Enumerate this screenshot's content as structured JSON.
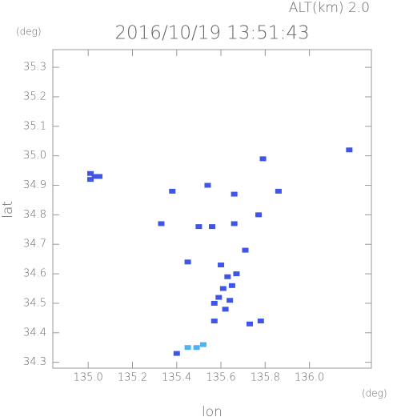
{
  "alt_label": "ALT(km) 2.0",
  "chart_data": {
    "type": "scatter",
    "title": "2016/10/19 13:51:43",
    "y_unit": "(deg)",
    "x_unit": "(deg)",
    "xlabel": "lon",
    "ylabel": "lat",
    "xlim": [
      134.84,
      136.28
    ],
    "ylim": [
      34.28,
      35.36
    ],
    "xticks": [
      {
        "value": 135,
        "label": "135.0"
      },
      135.2,
      135.4,
      135.6,
      135.8,
      {
        "value": 136,
        "label": "136.0"
      }
    ],
    "yticks": [
      34.3,
      34.4,
      34.5,
      34.6,
      34.7,
      34.8,
      34.9,
      {
        "value": 35,
        "label": "35.0"
      },
      35.1,
      35.2,
      35.3
    ],
    "series": [
      {
        "color": "#3f55e6",
        "x": [
          135.01,
          135.03,
          135.01,
          135.05,
          136.18,
          135.79,
          135.86,
          135.54,
          135.38,
          135.66,
          135.77,
          135.33,
          135.5,
          135.56,
          135.66,
          135.71,
          135.45,
          135.6,
          135.63,
          135.61,
          135.64,
          135.59,
          135.62,
          135.67,
          135.57,
          135.65,
          135.57,
          135.73,
          135.78,
          135.4
        ],
        "y": [
          34.94,
          34.93,
          34.92,
          34.93,
          35.02,
          34.99,
          34.88,
          34.9,
          34.88,
          34.87,
          34.8,
          34.77,
          34.76,
          34.76,
          34.77,
          34.68,
          34.64,
          34.63,
          34.59,
          34.55,
          34.51,
          34.52,
          34.48,
          34.6,
          34.5,
          34.56,
          34.44,
          34.43,
          34.44,
          34.33
        ]
      },
      {
        "color": "#4fb3f2",
        "x": [
          135.45,
          135.49,
          135.52
        ],
        "y": [
          34.35,
          34.35,
          34.36
        ]
      }
    ]
  }
}
